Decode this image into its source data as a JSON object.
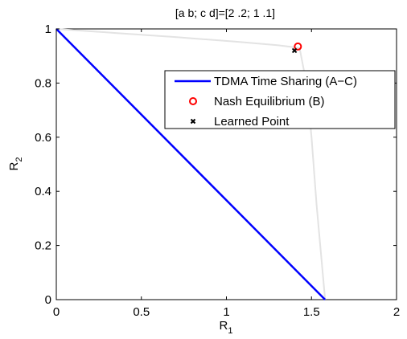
{
  "chart_data": {
    "type": "line",
    "title": "[a  b; c  d]=[2 .2; 1 .1]",
    "xlabel": "R",
    "xlabel_sub": "1",
    "ylabel": "R",
    "ylabel_sub": "2",
    "xlim": [
      0,
      2
    ],
    "ylim": [
      0,
      1
    ],
    "xticks": [
      0,
      0.5,
      1,
      1.5,
      2
    ],
    "yticks": [
      0,
      0.2,
      0.4,
      0.6,
      0.8,
      1
    ],
    "xtick_labels": [
      "0",
      "0.5",
      "1",
      "1.5",
      "2"
    ],
    "ytick_labels": [
      "0",
      "0.2",
      "0.4",
      "0.6",
      "0.8",
      "1"
    ],
    "grid": false,
    "legend_position": "upper-right",
    "series": [
      {
        "name": "",
        "kind": "line",
        "color": "#e3e3e3",
        "x": [
          0,
          0.35,
          0.7,
          1.05,
          1.3,
          1.43,
          1.47,
          1.5,
          1.53,
          1.58
        ],
        "y": [
          1,
          0.985,
          0.97,
          0.953,
          0.94,
          0.93,
          0.8,
          0.6,
          0.35,
          0
        ]
      },
      {
        "name": "TDMA Time Sharing (A−C)",
        "kind": "line",
        "color": "#0000ff",
        "x": [
          0,
          1.58
        ],
        "y": [
          1,
          0
        ]
      },
      {
        "name": "Nash Equilibrium (B)",
        "kind": "marker-circle",
        "color": "#ff0000",
        "x": [
          1.42
        ],
        "y": [
          0.935
        ]
      },
      {
        "name": "Learned Point",
        "kind": "marker-x",
        "color": "#000000",
        "x": [
          1.4
        ],
        "y": [
          0.92
        ]
      }
    ]
  }
}
